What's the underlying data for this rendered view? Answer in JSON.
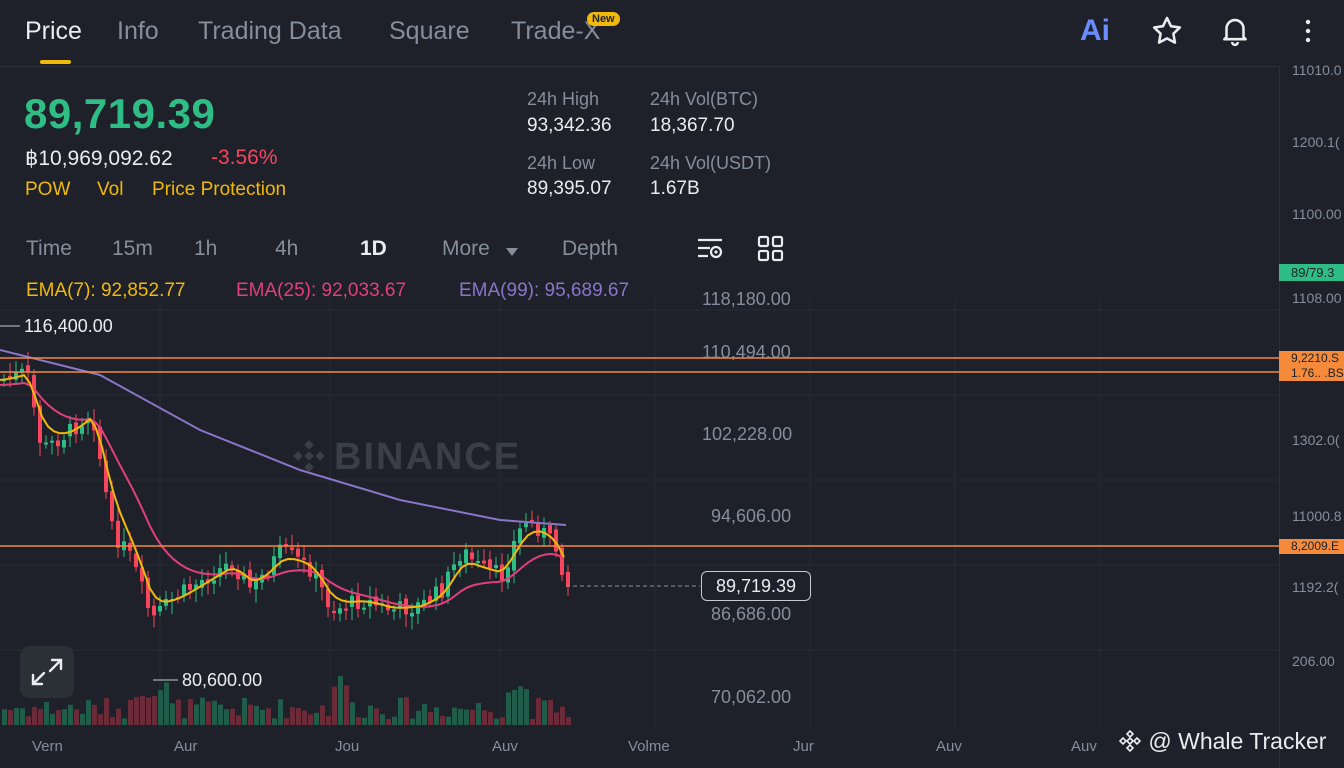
{
  "nav": {
    "tabs": [
      "Price",
      "Info",
      "Trading Data",
      "Square",
      "Trade-X"
    ],
    "new_badge": "New",
    "ai_label": "Ai"
  },
  "ticker": {
    "last_price": "89,719.39",
    "fiat_value": "฿10,969,092.62",
    "change_pct": "-3.56%",
    "tags": [
      "POW",
      "Vol",
      "Price Protection"
    ],
    "stats": {
      "high_label": "24h High",
      "high_value": "93,342.36",
      "vol_btc_label": "24h Vol(BTC)",
      "vol_btc_value": "18,367.70",
      "low_label": "24h Low",
      "low_value": "89,395.07",
      "vol_usdt_label": "24h Vol(USDT)",
      "vol_usdt_value": "1.67B"
    }
  },
  "intervals": {
    "items": [
      "Time",
      "15m",
      "1h",
      "4h",
      "1D",
      "More",
      "Depth"
    ],
    "active": "1D"
  },
  "indicators": {
    "ema7": "EMA(7): 92,852.77",
    "ema25": "EMA(25): 92,033.67",
    "ema99": "EMA(99): 95,689.67"
  },
  "chart": {
    "high_marker": "116,400.00",
    "low_marker": "80,600.00",
    "current_price_box": "89,719.39",
    "watermark": "BINANCE",
    "mid_scale": [
      "118,180.00",
      "110,494.00",
      "102,228.00",
      "94,606.00",
      "86,686.00",
      "70,062.00"
    ],
    "right_scale": [
      "11010.0",
      "1200.1(",
      "1100.00",
      "1108.00",
      "1302.0(",
      "11000.8",
      "1192.2(",
      "206.00"
    ],
    "right_tags": {
      "green": "89/79.3",
      "orange_1": "9,2210.S",
      "orange_2": "1.76.. .BS",
      "orange_3": "8,2009.E"
    },
    "x_labels": [
      "Vern",
      "Aur",
      "Jou",
      "Auv",
      "Volme",
      "Jur",
      "Auv",
      "Auv"
    ]
  },
  "colors": {
    "up": "#2ebd85",
    "down": "#f6465d",
    "accent": "#f0b90b",
    "ema7": "#f0b90b",
    "ema25": "#e0407b",
    "ema99": "#8a75c9",
    "level_line": "#f58a3a",
    "background": "#1e2129"
  },
  "icons": [
    "ai-icon",
    "star-icon",
    "bell-icon",
    "more-vertical-icon",
    "chart-settings-icon",
    "grid-icon",
    "expand-icon",
    "binance-logo-icon"
  ],
  "credit": "@ Whale Tracker",
  "chart_data": {
    "type": "candlestick",
    "title": "",
    "interval": "1D",
    "last_price": 89719.39,
    "high_marker": 116400.0,
    "low_marker": 80600.0,
    "y_ticks": [
      118180.0,
      110494.0,
      102228.0,
      94606.0,
      86686.0,
      70062.0
    ],
    "series": [
      {
        "name": "EMA(7)",
        "last": 92852.77
      },
      {
        "name": "EMA(25)",
        "last": 92033.67
      },
      {
        "name": "EMA(99)",
        "last": 95689.67
      }
    ],
    "grid": true,
    "legend": "top-left"
  }
}
